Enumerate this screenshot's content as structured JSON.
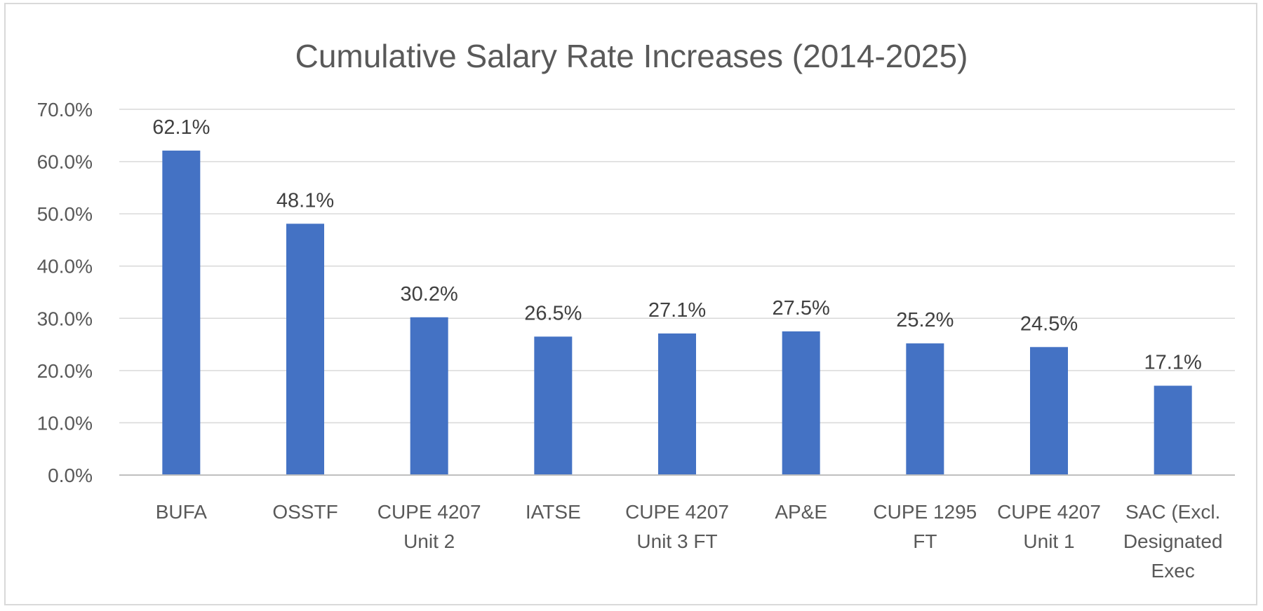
{
  "chart_data": {
    "type": "bar",
    "title": "Cumulative Salary Rate Increases (2014-2025)",
    "xlabel": "",
    "ylabel": "",
    "ylim": [
      0,
      70
    ],
    "y_ticks": [
      0,
      10,
      20,
      30,
      40,
      50,
      60,
      70
    ],
    "y_tick_labels": [
      "0.0%",
      "10.0%",
      "20.0%",
      "30.0%",
      "40.0%",
      "50.0%",
      "60.0%",
      "70.0%"
    ],
    "grid": true,
    "legend": "none",
    "bar_color": "#4472C4",
    "categories": [
      [
        "BUFA"
      ],
      [
        "OSSTF"
      ],
      [
        "CUPE 4207",
        "Unit 2"
      ],
      [
        "IATSE"
      ],
      [
        "CUPE 4207",
        "Unit 3 FT"
      ],
      [
        "AP&E"
      ],
      [
        "CUPE 1295",
        "FT"
      ],
      [
        "CUPE 4207",
        "Unit 1"
      ],
      [
        "SAC (Excl.",
        "Designated",
        "Exec"
      ]
    ],
    "values": [
      62.1,
      48.1,
      30.2,
      26.5,
      27.1,
      27.5,
      25.2,
      24.5,
      17.1
    ],
    "data_labels": [
      "62.1%",
      "48.1%",
      "30.2%",
      "26.5%",
      "27.1%",
      "27.5%",
      "25.2%",
      "24.5%",
      "17.1%"
    ]
  }
}
